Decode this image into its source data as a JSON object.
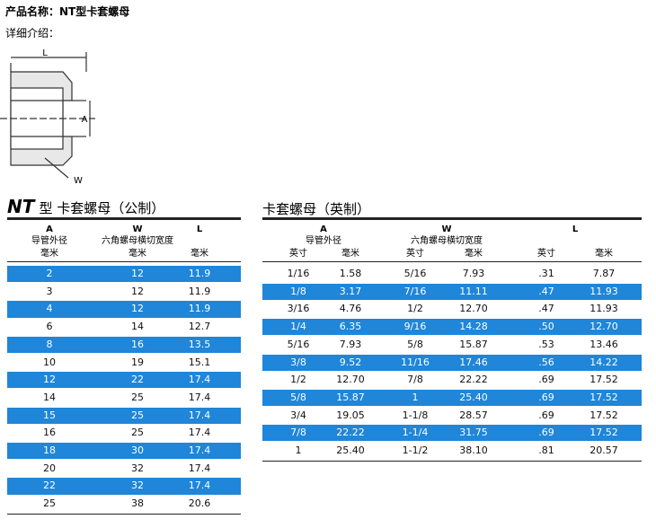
{
  "header": {
    "title": "产品名称：NT型卡套螺母",
    "intro": "详细介绍："
  },
  "diagram": {
    "labels": [
      "L",
      "A",
      "W"
    ]
  },
  "metric": {
    "title_code": "NT",
    "title_text": "型 卡套螺母（公制）",
    "headers": [
      {
        "code": "A",
        "desc": "导管外径",
        "unit": "毫米"
      },
      {
        "code": "W",
        "desc": "六角螺母横切宽度",
        "unit": "毫米"
      },
      {
        "code": "L",
        "unit": "毫米"
      }
    ],
    "rows": [
      [
        "2",
        "12",
        "11.9"
      ],
      [
        "3",
        "12",
        "11.9"
      ],
      [
        "4",
        "12",
        "11.9"
      ],
      [
        "6",
        "14",
        "12.7"
      ],
      [
        "8",
        "16",
        "13.5"
      ],
      [
        "10",
        "19",
        "15.1"
      ],
      [
        "12",
        "22",
        "17.4"
      ],
      [
        "14",
        "25",
        "17.4"
      ],
      [
        "15",
        "25",
        "17.4"
      ],
      [
        "16",
        "25",
        "17.4"
      ],
      [
        "18",
        "30",
        "17.4"
      ],
      [
        "20",
        "32",
        "17.4"
      ],
      [
        "22",
        "32",
        "17.4"
      ],
      [
        "25",
        "38",
        "20.6"
      ]
    ]
  },
  "imperial": {
    "title": "卡套螺母（英制）",
    "groups": [
      {
        "code": "A",
        "desc": "导管外径"
      },
      {
        "code": "W",
        "desc": "六角螺母横切宽度"
      },
      {
        "code": "L"
      }
    ],
    "units": [
      "英寸",
      "毫米",
      "英寸",
      "毫米",
      "英寸",
      "毫米"
    ],
    "rows": [
      [
        "1/16",
        "1.58",
        "5/16",
        "7.93",
        ".31",
        "7.87"
      ],
      [
        "1/8",
        "3.17",
        "7/16",
        "11.11",
        ".47",
        "11.93"
      ],
      [
        "3/16",
        "4.76",
        "1/2",
        "12.70",
        ".47",
        "11.93"
      ],
      [
        "1/4",
        "6.35",
        "9/16",
        "14.28",
        ".50",
        "12.70"
      ],
      [
        "5/16",
        "7.93",
        "5/8",
        "15.87",
        ".53",
        "13.46"
      ],
      [
        "3/8",
        "9.52",
        "11/16",
        "17.46",
        ".56",
        "14.22"
      ],
      [
        "1/2",
        "12.70",
        "7/8",
        "22.22",
        ".69",
        "17.52"
      ],
      [
        "5/8",
        "15.87",
        "1",
        "25.40",
        ".69",
        "17.52"
      ],
      [
        "3/4",
        "19.05",
        "1-1/8",
        "28.57",
        ".69",
        "17.52"
      ],
      [
        "7/8",
        "22.22",
        "1-1/4",
        "31.75",
        ".69",
        "17.52"
      ],
      [
        "1",
        "25.40",
        "1-1/2",
        "38.10",
        ".81",
        "20.57"
      ]
    ]
  }
}
